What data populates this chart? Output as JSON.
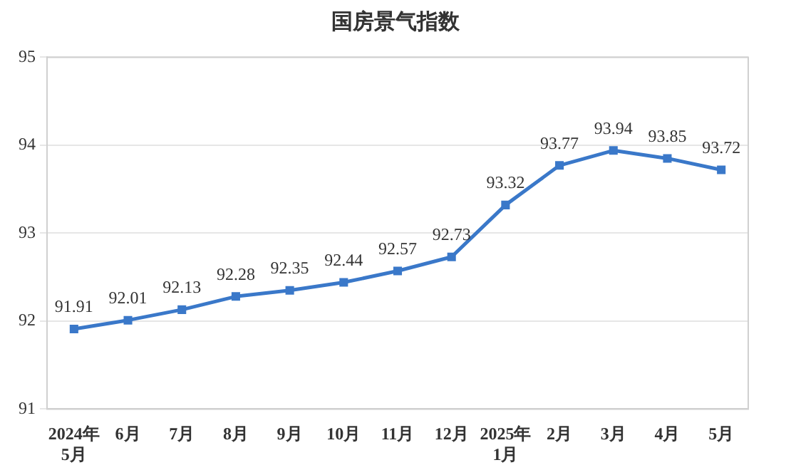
{
  "chart_data": {
    "type": "line",
    "title": "国房景气指数",
    "categories": [
      "2024年\n5月",
      "6月",
      "7月",
      "8月",
      "9月",
      "10月",
      "11月",
      "12月",
      "2025年\n1月",
      "2月",
      "3月",
      "4月",
      "5月"
    ],
    "series": [
      {
        "color": "#3a78c9",
        "values": [
          91.91,
          92.01,
          92.13,
          92.28,
          92.35,
          92.44,
          92.57,
          92.73,
          93.32,
          93.77,
          93.94,
          93.85,
          93.72
        ]
      }
    ],
    "ylim": [
      91,
      95
    ],
    "yticks": [
      91,
      92,
      93,
      94,
      95
    ],
    "grid": "y",
    "legend": false,
    "marker": "square",
    "line_style": "solid",
    "data_labels": true
  }
}
